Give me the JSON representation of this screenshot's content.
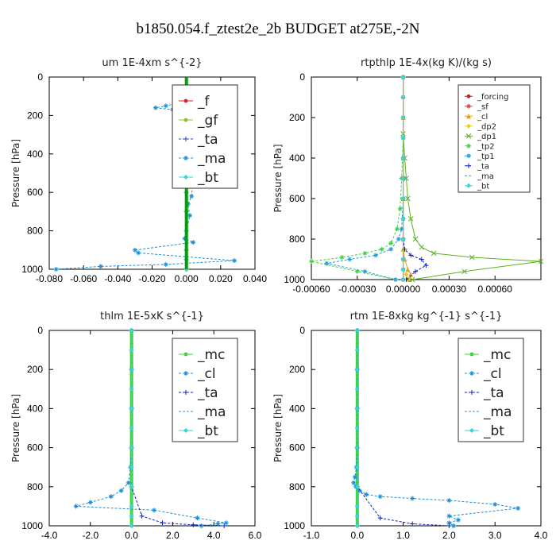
{
  "page_title": "b1850.054.f_ztest2e_2b  BUDGET at275E,-2N",
  "chart_data": [
    {
      "type": "line",
      "title": "um  1E-4xm s^{-2}",
      "xlabel": "",
      "ylabel": "Pressure [hPa]",
      "xlim": [
        -0.08,
        0.04
      ],
      "ylim": [
        1000,
        0
      ],
      "x_ticks": [
        "-0.080",
        "-0.060",
        "-0.040",
        "-0.020",
        "0.000",
        "0.020",
        "0.040"
      ],
      "x_tick_values": [
        -0.08,
        -0.06,
        -0.04,
        -0.02,
        0.0,
        0.02,
        0.04
      ],
      "y_ticks": [
        "0",
        "200",
        "400",
        "600",
        "800",
        "1000"
      ],
      "y_tick_values": [
        0,
        200,
        400,
        600,
        800,
        1000
      ],
      "legend_position": "top-right",
      "legend_size": "large",
      "legend": [
        "_f",
        "_gf",
        "_ta",
        "_ma",
        "_bt"
      ],
      "series": [
        {
          "name": "_f",
          "color": "#e02020",
          "dash": false,
          "marker": "circle",
          "x": [
            0,
            0,
            0,
            0,
            0,
            0,
            0,
            0,
            0,
            0,
            0,
            0
          ],
          "y": [
            100,
            150,
            200,
            300,
            400,
            500,
            600,
            700,
            800,
            900,
            950,
            1000
          ]
        },
        {
          "name": "_gf",
          "color": "#90c030",
          "dash": false,
          "marker": "circle",
          "x": [
            0,
            0,
            0,
            0,
            0,
            0,
            0,
            0,
            0,
            0,
            0,
            0
          ],
          "y": [
            100,
            150,
            200,
            300,
            400,
            500,
            600,
            700,
            800,
            900,
            950,
            1000
          ]
        },
        {
          "name": "_ta",
          "color": "#2040c0",
          "dash": true,
          "marker": "plus",
          "x": [
            0,
            0,
            0,
            0,
            0,
            0,
            0,
            0,
            0,
            0,
            0,
            0
          ],
          "y": [
            100,
            150,
            200,
            300,
            400,
            500,
            600,
            700,
            800,
            900,
            950,
            1000
          ]
        },
        {
          "name": "_ma",
          "color": "#1a8fd8",
          "dash": true,
          "marker": "star",
          "x": [
            0.002,
            0.0,
            -0.005,
            -0.012,
            -0.018,
            -0.008,
            -0.004,
            0.001,
            0.003,
            -0.003,
            0.001,
            0.004,
            0.002,
            0.0,
            0.001,
            0.004,
            0.003,
            0.001,
            0.002,
            -0.001,
            0.004,
            -0.03,
            -0.028,
            0.028,
            -0.012,
            -0.05,
            -0.076
          ],
          "y": [
            110,
            120,
            135,
            150,
            160,
            170,
            190,
            210,
            230,
            250,
            280,
            320,
            360,
            400,
            450,
            530,
            620,
            660,
            720,
            840,
            860,
            900,
            915,
            955,
            975,
            985,
            1000
          ]
        },
        {
          "name": "_bt",
          "color": "#30d8d8",
          "dash": false,
          "marker": "diamond",
          "x": [
            0,
            0,
            0,
            0,
            0,
            0,
            0,
            0,
            0,
            0,
            0,
            0
          ],
          "y": [
            100,
            150,
            200,
            300,
            400,
            500,
            600,
            700,
            800,
            900,
            950,
            1000
          ]
        },
        {
          "name": "",
          "color": "#00a000",
          "dash": false,
          "marker": "none",
          "thick": true,
          "x": [
            0,
            0
          ],
          "y": [
            0,
            1000
          ]
        }
      ]
    },
    {
      "type": "line",
      "title": "rtpthlp  1E-4x(kg K)/(kg s)",
      "xlabel": "",
      "ylabel": "Pressure [hPa]",
      "xlim": [
        -0.0006,
        0.0009
      ],
      "ylim": [
        1000,
        0
      ],
      "x_ticks": [
        "-0.00060",
        "-0.00030",
        "0.00000",
        "0.00030",
        "0.00060"
      ],
      "x_tick_values": [
        -0.0006,
        -0.0003,
        0.0,
        0.0003,
        0.0006
      ],
      "y_ticks": [
        "0",
        "200",
        "400",
        "600",
        "800",
        "1000"
      ],
      "y_tick_values": [
        0,
        200,
        400,
        600,
        800,
        1000
      ],
      "legend_position": "top-right",
      "legend_size": "small",
      "legend": [
        "_forcing",
        "_sf",
        "_cl",
        "_dp2",
        "_dp1",
        "_tp2",
        "_tp1",
        "_ta",
        "_ma",
        "_bt"
      ],
      "series": [
        {
          "name": "_forcing",
          "color": "#c02020",
          "dash": false,
          "marker": "circle",
          "x": [
            0,
            0,
            0,
            0,
            0,
            0,
            0,
            0,
            0,
            0,
            0,
            0
          ],
          "y": [
            0,
            100,
            200,
            300,
            400,
            500,
            600,
            700,
            800,
            900,
            950,
            1000
          ]
        },
        {
          "name": "_sf",
          "color": "#e04040",
          "dash": false,
          "marker": "star",
          "x": [
            0,
            0,
            0,
            0,
            0,
            0,
            0,
            0,
            0,
            0,
            0,
            0
          ],
          "y": [
            0,
            100,
            200,
            300,
            400,
            500,
            600,
            700,
            800,
            900,
            950,
            1000
          ]
        },
        {
          "name": "_cl",
          "color": "#e0a020",
          "dash": false,
          "marker": "triangle",
          "x": [
            0,
            0,
            0,
            0,
            0,
            0,
            1e-05,
            3e-05,
            5e-05,
            4e-05
          ],
          "y": [
            0,
            200,
            400,
            600,
            800,
            850,
            900,
            950,
            975,
            1000
          ]
        },
        {
          "name": "_dp2",
          "color": "#e0d020",
          "dash": false,
          "marker": "diamond",
          "x": [
            0,
            0,
            0,
            0,
            0,
            0,
            0,
            2e-05,
            3e-05
          ],
          "y": [
            0,
            200,
            400,
            600,
            800,
            900,
            950,
            975,
            1000
          ]
        },
        {
          "name": "_dp1",
          "color": "#60b020",
          "dash": false,
          "marker": "x",
          "x": [
            0,
            1e-05,
            2e-05,
            3e-05,
            5e-05,
            8e-05,
            0.00012,
            0.0002,
            0.00045,
            0.0009,
            0.0004,
            6e-05
          ],
          "y": [
            280,
            400,
            500,
            600,
            700,
            800,
            840,
            870,
            890,
            910,
            960,
            1000
          ]
        },
        {
          "name": "_tp2",
          "color": "#40d040",
          "dash": true,
          "marker": "star",
          "x": [
            0,
            -1e-05,
            -2e-05,
            -4e-05,
            -8e-05,
            -0.00014,
            -0.00025,
            -0.0004,
            -0.0006,
            -0.0003,
            -5e-05
          ],
          "y": [
            300,
            500,
            650,
            750,
            820,
            850,
            870,
            890,
            910,
            960,
            1000
          ]
        },
        {
          "name": "_tp1",
          "color": "#20a0e0",
          "dash": true,
          "marker": "star",
          "x": [
            0,
            -1e-05,
            -3e-05,
            -8e-05,
            -0.00018,
            -0.00035,
            -0.0005,
            -0.00025,
            -5e-05
          ],
          "y": [
            600,
            750,
            800,
            850,
            880,
            900,
            920,
            960,
            1000
          ]
        },
        {
          "name": "_ta",
          "color": "#1020c0",
          "dash": true,
          "marker": "plus",
          "x": [
            0,
            1e-05,
            5e-05,
            0.00012,
            0.00015,
            8e-05,
            2e-05
          ],
          "y": [
            800,
            850,
            880,
            900,
            930,
            960,
            1000
          ]
        },
        {
          "name": "_ma",
          "color": "#3090d0",
          "dash": true,
          "marker": "none",
          "x": [
            0,
            0,
            0,
            0,
            0,
            0
          ],
          "y": [
            0,
            200,
            400,
            600,
            800,
            1000
          ]
        },
        {
          "name": "_bt",
          "color": "#30d8d8",
          "dash": false,
          "marker": "diamond",
          "x": [
            0,
            0,
            0,
            0,
            0,
            0,
            0,
            0,
            0,
            0,
            0,
            0
          ],
          "y": [
            0,
            100,
            200,
            300,
            400,
            500,
            600,
            700,
            800,
            900,
            950,
            1000
          ]
        }
      ]
    },
    {
      "type": "line",
      "title": "thlm  1E-5xK s^{-1}",
      "xlabel": "",
      "ylabel": "Pressure [hPa]",
      "xlim": [
        -4.0,
        6.0
      ],
      "ylim": [
        1000,
        0
      ],
      "x_ticks": [
        "-4.0",
        "-2.0",
        "0.0",
        "2.0",
        "4.0",
        "6.0"
      ],
      "x_tick_values": [
        -4,
        -2,
        0,
        2,
        4,
        6
      ],
      "y_ticks": [
        "0",
        "200",
        "400",
        "600",
        "800",
        "1000"
      ],
      "y_tick_values": [
        0,
        200,
        400,
        600,
        800,
        1000
      ],
      "legend_position": "top-right",
      "legend_size": "large",
      "legend": [
        "_mc",
        "_cl",
        "_ta",
        "_ma",
        "_bt"
      ],
      "series": [
        {
          "name": "_mc",
          "color": "#40d040",
          "dash": false,
          "marker": "circle",
          "thick": true,
          "x": [
            0,
            0,
            0,
            0,
            0,
            0,
            0,
            0,
            0,
            0,
            0,
            0
          ],
          "y": [
            0,
            100,
            200,
            300,
            400,
            500,
            600,
            700,
            800,
            900,
            950,
            1000
          ]
        },
        {
          "name": "_cl",
          "color": "#1a8fd8",
          "dash": true,
          "marker": "star",
          "x": [
            0,
            0,
            0,
            0,
            -0.05,
            -0.15,
            -0.5,
            -1.0,
            -2.0,
            -2.7,
            1.1,
            3.2,
            4.6,
            4.2,
            3.4
          ],
          "y": [
            0,
            200,
            400,
            600,
            700,
            780,
            820,
            850,
            880,
            900,
            920,
            960,
            985,
            990,
            1000
          ]
        },
        {
          "name": "_ta",
          "color": "#1020c0",
          "dash": true,
          "marker": "plus",
          "x": [
            0,
            0,
            0,
            0,
            0,
            0.5,
            1.5,
            3.0,
            4.5
          ],
          "y": [
            0,
            200,
            400,
            600,
            800,
            950,
            985,
            995,
            1000
          ]
        },
        {
          "name": "_ma",
          "color": "#3090d0",
          "dash": true,
          "marker": "none",
          "x": [
            0,
            0,
            0,
            0,
            0,
            0
          ],
          "y": [
            0,
            200,
            400,
            600,
            800,
            1000
          ]
        },
        {
          "name": "_bt",
          "color": "#30d8d8",
          "dash": false,
          "marker": "diamond",
          "x": [
            0,
            0,
            0,
            0,
            0,
            0,
            0,
            0,
            0,
            0,
            0,
            0
          ],
          "y": [
            0,
            100,
            200,
            300,
            400,
            500,
            600,
            700,
            800,
            900,
            950,
            1000
          ]
        }
      ]
    },
    {
      "type": "line",
      "title": "rtm  1E-8xkg kg^{-1} s^{-1}",
      "xlabel": "",
      "ylabel": "Pressure [hPa]",
      "xlim": [
        -1.0,
        4.0
      ],
      "ylim": [
        1000,
        0
      ],
      "x_ticks": [
        "-1.0",
        "0.0",
        "1.0",
        "2.0",
        "3.0",
        "4.0"
      ],
      "x_tick_values": [
        -1,
        0,
        1,
        2,
        3,
        4
      ],
      "y_ticks": [
        "0",
        "200",
        "400",
        "600",
        "800",
        "1000"
      ],
      "y_tick_values": [
        0,
        200,
        400,
        600,
        800,
        1000
      ],
      "legend_position": "top-right",
      "legend_size": "large",
      "legend": [
        "_mc",
        "_cl",
        "_ta",
        "_ma",
        "_bt"
      ],
      "series": [
        {
          "name": "_mc",
          "color": "#40d040",
          "dash": false,
          "marker": "circle",
          "thick": true,
          "x": [
            0,
            0,
            0,
            0,
            0,
            0,
            0,
            0,
            0,
            0,
            0,
            0
          ],
          "y": [
            0,
            100,
            200,
            300,
            400,
            500,
            600,
            700,
            800,
            900,
            950,
            1000
          ]
        },
        {
          "name": "_cl",
          "color": "#1a8fd8",
          "dash": true,
          "marker": "star",
          "x": [
            0,
            0,
            0,
            0,
            -0.02,
            -0.05,
            -0.08,
            -0.03,
            0.05,
            0.2,
            0.5,
            1.2,
            2.0,
            3.0,
            3.5,
            2.0,
            2.2,
            2.0,
            2.1
          ],
          "y": [
            0,
            200,
            400,
            600,
            700,
            750,
            780,
            800,
            820,
            840,
            850,
            860,
            870,
            890,
            910,
            950,
            970,
            985,
            1000
          ]
        },
        {
          "name": "_ta",
          "color": "#1020c0",
          "dash": true,
          "marker": "plus",
          "x": [
            0,
            0,
            0,
            0,
            0,
            0.5,
            1.2,
            2.0
          ],
          "y": [
            0,
            200,
            400,
            600,
            800,
            960,
            990,
            1000
          ]
        },
        {
          "name": "_ma",
          "color": "#3090d0",
          "dash": true,
          "marker": "none",
          "x": [
            0,
            0,
            0,
            0,
            0,
            0
          ],
          "y": [
            0,
            200,
            400,
            600,
            800,
            1000
          ]
        },
        {
          "name": "_bt",
          "color": "#30d8d8",
          "dash": false,
          "marker": "diamond",
          "x": [
            0,
            0,
            0,
            0,
            0,
            0,
            0,
            0,
            0,
            0,
            0,
            0
          ],
          "y": [
            0,
            100,
            200,
            300,
            400,
            500,
            600,
            700,
            800,
            900,
            950,
            1000
          ]
        }
      ]
    }
  ]
}
